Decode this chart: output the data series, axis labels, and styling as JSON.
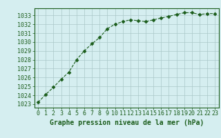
{
  "x": [
    0,
    1,
    2,
    3,
    4,
    5,
    6,
    7,
    8,
    9,
    10,
    11,
    12,
    13,
    14,
    15,
    16,
    17,
    18,
    19,
    20,
    21,
    22,
    23
  ],
  "y": [
    1023.2,
    1024.1,
    1024.9,
    1025.8,
    1026.6,
    1028.0,
    1029.0,
    1029.8,
    1030.5,
    1031.5,
    1032.0,
    1032.3,
    1032.5,
    1032.4,
    1032.3,
    1032.5,
    1032.7,
    1032.9,
    1033.1,
    1033.3,
    1033.3,
    1033.1,
    1033.2,
    1033.2
  ],
  "line_color": "#1a5c1a",
  "marker": "D",
  "marker_size": 2.5,
  "bg_color": "#d5eef0",
  "grid_color": "#aac8c8",
  "xlabel": "Graphe pression niveau de la mer (hPa)",
  "xlabel_fontsize": 7.0,
  "ylabel_ticks": [
    1023,
    1024,
    1025,
    1026,
    1027,
    1028,
    1029,
    1030,
    1031,
    1032,
    1033
  ],
  "ylim": [
    1022.6,
    1033.8
  ],
  "xlim": [
    -0.5,
    23.5
  ],
  "tick_fontsize": 6.0,
  "title_color": "#1a5c1a"
}
